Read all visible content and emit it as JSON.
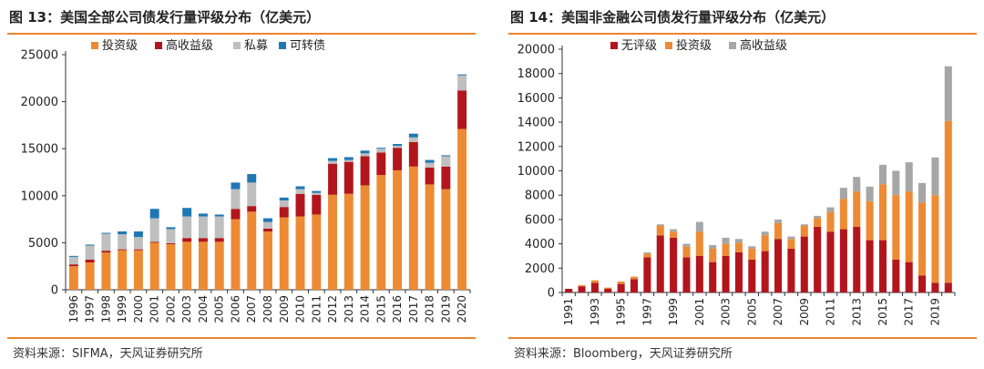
{
  "figures": [
    {
      "title": "图 13：美国全部公司债发行量评级分布（亿美元）",
      "source": "资料来源：SIFMA，天风证券研究所"
    },
    {
      "title": "图 14：美国非金融公司债发行量评级分布（亿美元）",
      "source": "资料来源：Bloomberg，天风证券研究所"
    }
  ],
  "chart_data": [
    {
      "type": "bar",
      "stacked": true,
      "title": "",
      "xlabel": "",
      "ylabel": "",
      "ylim": [
        0,
        25000
      ],
      "yticks": [
        0,
        5000,
        10000,
        15000,
        20000,
        25000
      ],
      "grid": false,
      "legend_position": "top",
      "categories": [
        "1996",
        "1997",
        "1998",
        "1999",
        "2000",
        "2001",
        "2002",
        "2003",
        "2004",
        "2005",
        "2006",
        "2007",
        "2008",
        "2009",
        "2010",
        "2011",
        "2012",
        "2013",
        "2014",
        "2015",
        "2016",
        "2017",
        "2018",
        "2019",
        "2020"
      ],
      "tick_labels": [
        "1996",
        "1997",
        "1998",
        "1999",
        "2000",
        "2001",
        "2002",
        "2003",
        "2004",
        "2005",
        "2006",
        "2007",
        "2008",
        "2009",
        "2010",
        "2011",
        "2012",
        "2013",
        "2014",
        "2015",
        "2016",
        "2017",
        "2018",
        "2019",
        "2020"
      ],
      "series": [
        {
          "name": "投资级",
          "color": "#ed8b34",
          "values": [
            2500,
            2900,
            3950,
            4200,
            4200,
            5000,
            4850,
            5100,
            5100,
            5100,
            7500,
            8300,
            6200,
            7700,
            7800,
            8000,
            10100,
            10200,
            11100,
            12200,
            12700,
            13100,
            11200,
            10700,
            17100
          ]
        },
        {
          "name": "高收益级",
          "color": "#b2161c",
          "values": [
            200,
            300,
            200,
            100,
            100,
            100,
            100,
            400,
            400,
            400,
            1100,
            600,
            300,
            1100,
            2400,
            2100,
            3300,
            3400,
            3100,
            2400,
            2400,
            2600,
            1800,
            2400,
            4100
          ]
        },
        {
          "name": "私募",
          "color": "#bfbfbf",
          "values": [
            800,
            1500,
            1800,
            1600,
            1300,
            2500,
            1500,
            2300,
            2300,
            2300,
            2100,
            2500,
            700,
            700,
            500,
            200,
            300,
            200,
            300,
            400,
            200,
            500,
            500,
            1100,
            1600
          ]
        },
        {
          "name": "可转债",
          "color": "#1f78b4",
          "values": [
            100,
            100,
            100,
            300,
            600,
            1000,
            200,
            900,
            300,
            200,
            700,
            900,
            400,
            300,
            300,
            200,
            300,
            300,
            300,
            100,
            200,
            400,
            300,
            100,
            100
          ]
        }
      ]
    },
    {
      "type": "bar",
      "stacked": true,
      "title": "",
      "xlabel": "",
      "ylabel": "",
      "ylim": [
        0,
        20000
      ],
      "yticks": [
        0,
        2000,
        4000,
        6000,
        8000,
        10000,
        12000,
        14000,
        16000,
        18000,
        20000
      ],
      "grid": false,
      "legend_position": "top",
      "categories": [
        "1991",
        "1992",
        "1993",
        "1994",
        "1995",
        "1996",
        "1997",
        "1998",
        "1999",
        "2000",
        "2001",
        "2002",
        "2003",
        "2004",
        "2005",
        "2006",
        "2007",
        "2008",
        "2009",
        "2010",
        "2011",
        "2012",
        "2013",
        "2014",
        "2015",
        "2016",
        "2017",
        "2018",
        "2019",
        "2020"
      ],
      "tick_labels": [
        "1991",
        "",
        "1993",
        "",
        "1995",
        "",
        "1997",
        "",
        "1999",
        "",
        "2001",
        "",
        "2003",
        "",
        "2005",
        "",
        "2007",
        "",
        "2009",
        "",
        "2011",
        "",
        "2013",
        "",
        "2015",
        "",
        "2017",
        "",
        "2019",
        ""
      ],
      "series": [
        {
          "name": "无评级",
          "color": "#b2161c",
          "values": [
            300,
            500,
            800,
            300,
            700,
            1100,
            2900,
            4700,
            4500,
            2900,
            3000,
            2500,
            3000,
            3300,
            2700,
            3400,
            4400,
            3600,
            4600,
            5400,
            5000,
            5200,
            5400,
            4300,
            4300,
            2700,
            2500,
            1400,
            800,
            800
          ]
        },
        {
          "name": "投资级",
          "color": "#ed8b34",
          "values": [
            0,
            100,
            200,
            100,
            200,
            200,
            300,
            800,
            500,
            900,
            2000,
            1100,
            1000,
            800,
            900,
            1300,
            1300,
            800,
            900,
            700,
            1600,
            2500,
            2900,
            3200,
            4600,
            5300,
            5800,
            6000,
            7200,
            13300
          ]
        },
        {
          "name": "高收益级",
          "color": "#a6a6a6",
          "values": [
            0,
            0,
            0,
            0,
            0,
            0,
            100,
            100,
            200,
            200,
            800,
            300,
            500,
            300,
            200,
            300,
            300,
            200,
            100,
            200,
            400,
            900,
            1200,
            1200,
            1600,
            2000,
            2400,
            1600,
            3100,
            4500
          ]
        }
      ]
    }
  ]
}
